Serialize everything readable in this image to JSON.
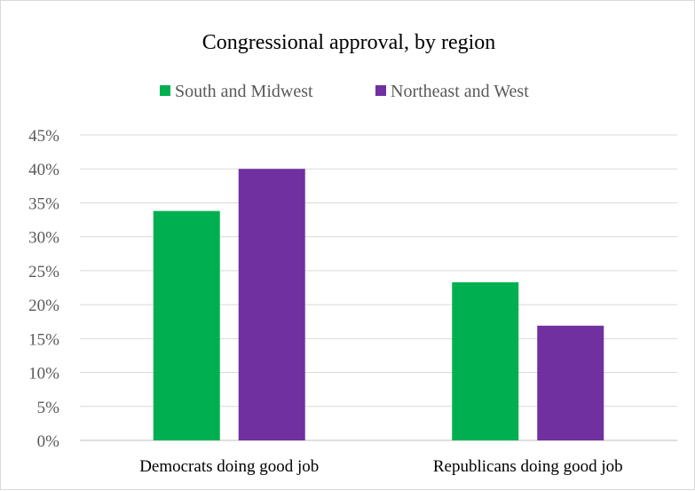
{
  "chart_data": {
    "type": "bar",
    "title": "Congressional approval, by region",
    "categories": [
      "Democrats doing good job",
      "Republicans doing good job"
    ],
    "series": [
      {
        "name": "South and Midwest",
        "values": [
          0.338,
          0.233
        ],
        "color": "#00b050"
      },
      {
        "name": "Northeast and West",
        "values": [
          0.4,
          0.169
        ],
        "color": "#7030a0"
      }
    ],
    "ylim": [
      0,
      0.45
    ],
    "yticks": [
      "0%",
      "5%",
      "10%",
      "15%",
      "20%",
      "25%",
      "30%",
      "35%",
      "40%",
      "45%"
    ],
    "ytick_values": [
      0,
      0.05,
      0.1,
      0.15,
      0.2,
      0.25,
      0.3,
      0.35,
      0.4,
      0.45
    ],
    "grid": true,
    "legend_position": "top"
  }
}
